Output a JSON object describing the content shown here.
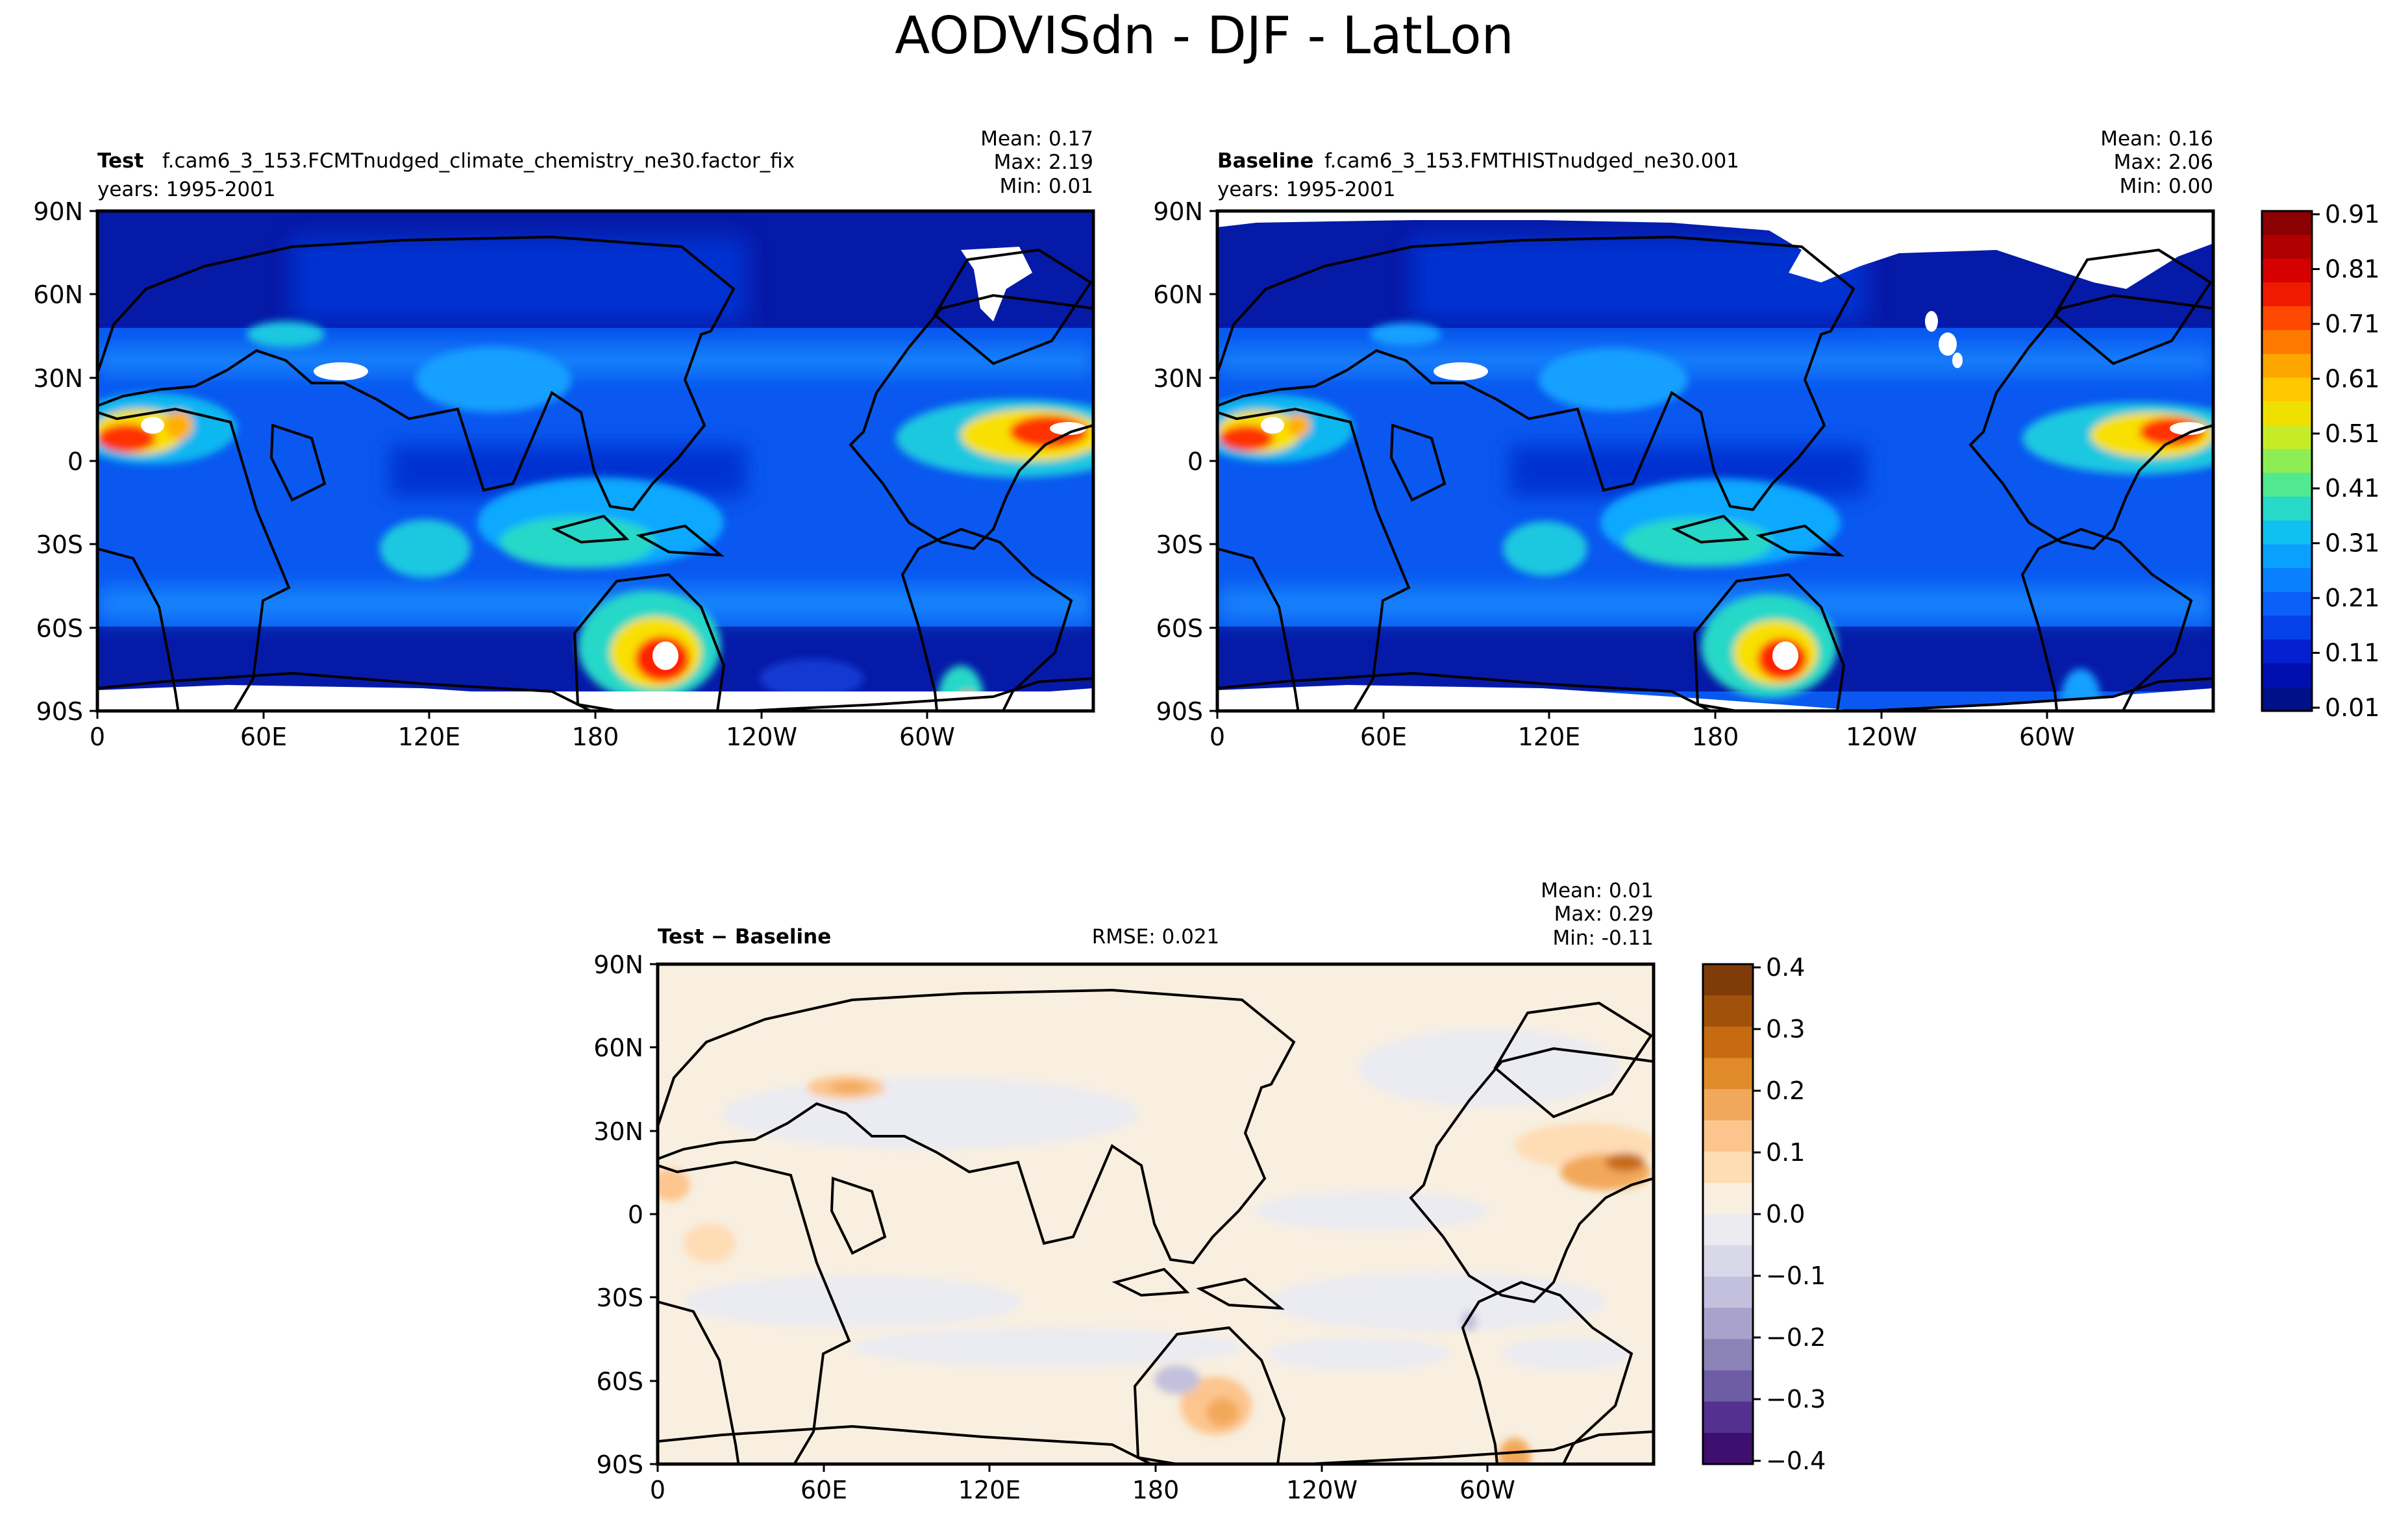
{
  "title": "AODVISdn - DJF - LatLon",
  "colors": {
    "ocean_low": "#00108a",
    "ocean_mid": "#0048e8",
    "diff_bg": "#f8efe0",
    "coast": "#000000"
  },
  "chart_data": [
    {
      "id": "test",
      "type": "heatmap",
      "panel_label": "Test",
      "case": "f.cam6_3_153.FCMTnudged_climate_chemistry_ne30.factor_fix",
      "years": "years: 1995-2001",
      "stats": {
        "mean": "Mean:  0.17",
        "max": "Max:  2.19",
        "min": "Min:  0.01"
      },
      "mean": 0.17,
      "max": 2.19,
      "min": 0.01,
      "xlabels": [
        "0",
        "60E",
        "120E",
        "180",
        "120W",
        "60W"
      ],
      "ylabels": [
        "90N",
        "60N",
        "30N",
        "0",
        "30S",
        "60S",
        "90S"
      ],
      "xlim": [
        0,
        360
      ],
      "ylim": [
        -90,
        90
      ]
    },
    {
      "id": "baseline",
      "type": "heatmap",
      "panel_label": "Baseline",
      "case": "f.cam6_3_153.FMTHISTnudged_ne30.001",
      "years": "years: 1995-2001",
      "stats": {
        "mean": "Mean:  0.16",
        "max": "Max:  2.06",
        "min": "Min:  0.00"
      },
      "mean": 0.16,
      "max": 2.06,
      "min": 0.0,
      "xlabels": [
        "0",
        "60E",
        "120E",
        "180",
        "120W",
        "60W"
      ],
      "ylabels": [
        "90N",
        "60N",
        "30N",
        "0",
        "30S",
        "60S",
        "90S"
      ],
      "xlim": [
        0,
        360
      ],
      "ylim": [
        -90,
        90
      ]
    },
    {
      "id": "diff",
      "type": "heatmap",
      "panel_label": "Test − Baseline",
      "rmse": "RMSE: 0.021",
      "stats": {
        "mean": "Mean:  0.01",
        "max": "Max:  0.29",
        "min": "Min: -0.11"
      },
      "mean": 0.01,
      "max": 0.29,
      "min": -0.11,
      "xlabels": [
        "0",
        "60E",
        "120E",
        "180",
        "120W",
        "60W"
      ],
      "ylabels": [
        "90N",
        "60N",
        "30N",
        "0",
        "30S",
        "60S",
        "90S"
      ],
      "xlim": [
        0,
        360
      ],
      "ylim": [
        -90,
        90
      ]
    }
  ],
  "colorbar_main": {
    "labels": [
      "0.91",
      "0.81",
      "0.71",
      "0.61",
      "0.51",
      "0.41",
      "0.31",
      "0.21",
      "0.11",
      "0.01"
    ],
    "colors": [
      "#8b0000",
      "#b00000",
      "#d60000",
      "#f01a00",
      "#ff4800",
      "#ff7800",
      "#ffa500",
      "#ffc800",
      "#f0e000",
      "#c8eb28",
      "#8ced55",
      "#50e890",
      "#28d8c8",
      "#10c0f0",
      "#0aa0ff",
      "#0a80ff",
      "#0a60f8",
      "#0640e8",
      "#0420d0",
      "#0010b0",
      "#00108a"
    ]
  },
  "colorbar_diff": {
    "labels": [
      "0.4",
      "0.3",
      "0.2",
      "0.1",
      "0.0",
      "−0.1",
      "−0.2",
      "−0.3",
      "−0.4"
    ],
    "colors": [
      "#7f3b08",
      "#a1520a",
      "#c66b12",
      "#e08a2a",
      "#f2a85a",
      "#fdc58e",
      "#fedcb4",
      "#f8efe0",
      "#ebebf0",
      "#d8d8e8",
      "#c2c0dc",
      "#a8a2cc",
      "#8c84b8",
      "#6e5ca4",
      "#543090",
      "#3d0f6e"
    ]
  }
}
